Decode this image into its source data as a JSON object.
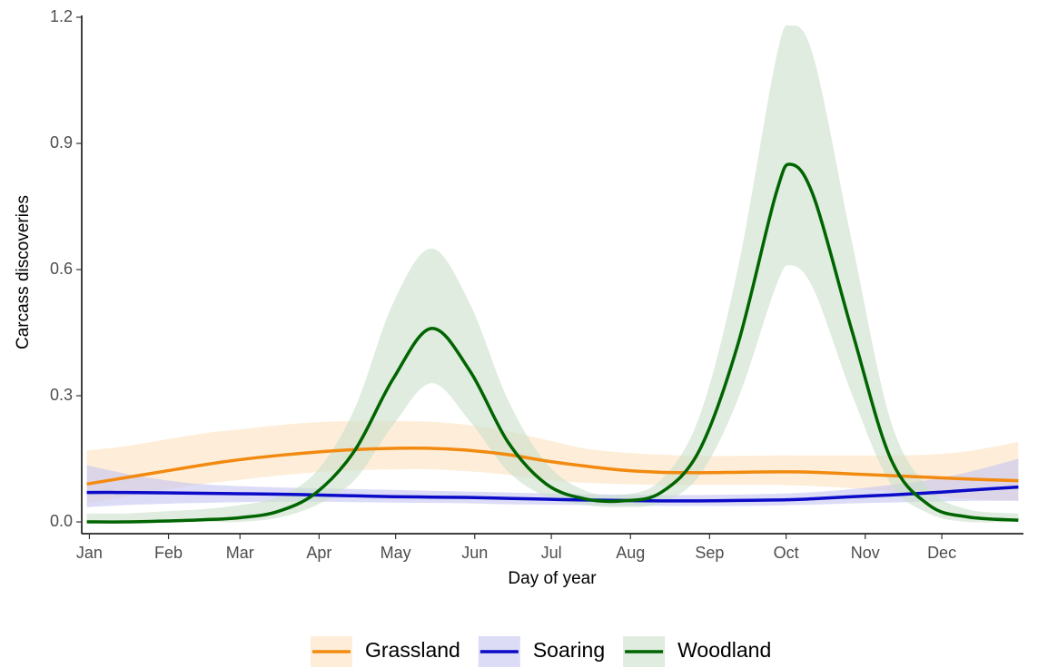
{
  "chart_data": {
    "type": "line",
    "x_label": "Day of year",
    "y_label": "Carcass discoveries",
    "x": [
      0,
      15,
      30,
      45,
      60,
      75,
      90,
      105,
      120,
      135,
      150,
      165,
      180,
      195,
      210,
      225,
      240,
      255,
      270,
      276,
      285,
      300,
      315,
      330,
      345,
      365
    ],
    "xlim": [
      -2,
      367
    ],
    "xticks": [
      {
        "value": 1,
        "label": "Jan"
      },
      {
        "value": 32,
        "label": "Feb"
      },
      {
        "value": 60,
        "label": "Mar"
      },
      {
        "value": 91,
        "label": "Apr"
      },
      {
        "value": 121,
        "label": "May"
      },
      {
        "value": 152,
        "label": "Jun"
      },
      {
        "value": 182,
        "label": "Jul"
      },
      {
        "value": 213,
        "label": "Aug"
      },
      {
        "value": 244,
        "label": "Sep"
      },
      {
        "value": 274,
        "label": "Oct"
      },
      {
        "value": 305,
        "label": "Nov"
      },
      {
        "value": 335,
        "label": "Dec"
      }
    ],
    "ylim": [
      -0.028,
      1.2
    ],
    "yticks": [
      {
        "value": 0,
        "label": "0.0"
      },
      0.3,
      0.6,
      0.9,
      1.2
    ],
    "legend": "bottom",
    "series": [
      {
        "name": "Grassland",
        "color": "#f28a10",
        "band_color": "#fde3bf",
        "values": [
          0.09,
          0.105,
          0.12,
          0.135,
          0.148,
          0.158,
          0.166,
          0.172,
          0.175,
          0.175,
          0.17,
          0.16,
          0.145,
          0.133,
          0.123,
          0.118,
          0.117,
          0.118,
          0.119,
          0.119,
          0.118,
          0.114,
          0.11,
          0.106,
          0.102,
          0.098
        ],
        "upper": [
          0.17,
          0.18,
          0.195,
          0.21,
          0.22,
          0.23,
          0.237,
          0.24,
          0.24,
          0.238,
          0.23,
          0.215,
          0.195,
          0.175,
          0.165,
          0.16,
          0.157,
          0.157,
          0.158,
          0.158,
          0.158,
          0.158,
          0.158,
          0.16,
          0.168,
          0.19
        ],
        "lower": [
          0.045,
          0.06,
          0.075,
          0.09,
          0.1,
          0.11,
          0.118,
          0.123,
          0.125,
          0.125,
          0.12,
          0.112,
          0.1,
          0.093,
          0.09,
          0.088,
          0.088,
          0.088,
          0.088,
          0.087,
          0.085,
          0.08,
          0.072,
          0.062,
          0.055,
          0.05
        ]
      },
      {
        "name": "Soaring",
        "color": "#0a0ac8",
        "band_color": "#c5c5f2",
        "values": [
          0.07,
          0.07,
          0.069,
          0.068,
          0.067,
          0.066,
          0.064,
          0.062,
          0.06,
          0.059,
          0.058,
          0.056,
          0.054,
          0.052,
          0.051,
          0.05,
          0.05,
          0.051,
          0.052,
          0.053,
          0.055,
          0.06,
          0.064,
          0.069,
          0.075,
          0.083
        ],
        "upper": [
          0.135,
          0.115,
          0.1,
          0.09,
          0.085,
          0.082,
          0.08,
          0.078,
          0.076,
          0.074,
          0.072,
          0.07,
          0.068,
          0.066,
          0.065,
          0.064,
          0.064,
          0.065,
          0.067,
          0.068,
          0.071,
          0.078,
          0.088,
          0.1,
          0.118,
          0.15
        ],
        "lower": [
          0.035,
          0.04,
          0.043,
          0.045,
          0.047,
          0.048,
          0.048,
          0.047,
          0.046,
          0.045,
          0.044,
          0.042,
          0.041,
          0.04,
          0.039,
          0.038,
          0.038,
          0.038,
          0.039,
          0.04,
          0.041,
          0.044,
          0.046,
          0.048,
          0.05,
          0.05
        ]
      },
      {
        "name": "Woodland",
        "color": "#006400",
        "band_color": "#c9e0c9",
        "values": [
          0,
          0,
          0.002,
          0.005,
          0.01,
          0.025,
          0.07,
          0.17,
          0.34,
          0.46,
          0.36,
          0.19,
          0.09,
          0.055,
          0.05,
          0.07,
          0.17,
          0.42,
          0.78,
          0.85,
          0.77,
          0.45,
          0.15,
          0.04,
          0.012,
          0.004
        ],
        "upper": [
          0.02,
          0.02,
          0.025,
          0.03,
          0.04,
          0.06,
          0.12,
          0.27,
          0.52,
          0.65,
          0.52,
          0.29,
          0.14,
          0.075,
          0.065,
          0.1,
          0.25,
          0.6,
          1.1,
          1.18,
          1.1,
          0.66,
          0.24,
          0.08,
          0.03,
          0.02
        ],
        "lower": [
          0,
          0,
          0,
          0,
          0,
          0.01,
          0.04,
          0.1,
          0.23,
          0.33,
          0.24,
          0.12,
          0.06,
          0.04,
          0.035,
          0.045,
          0.11,
          0.29,
          0.56,
          0.61,
          0.55,
          0.3,
          0.09,
          0.02,
          0,
          0
        ]
      }
    ]
  }
}
